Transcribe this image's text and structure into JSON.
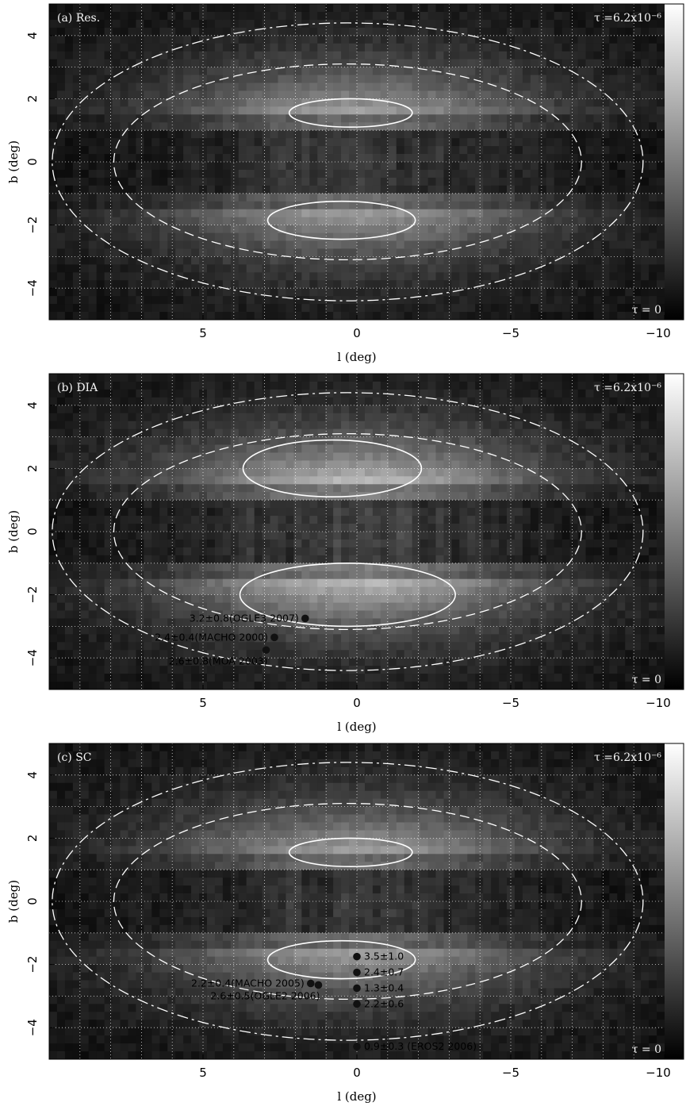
{
  "chart_data": [
    {
      "type": "heatmap",
      "panel": "(a) Res.",
      "xlabel": "l (deg)",
      "ylabel": "b (deg)",
      "xlim": [
        10,
        -10
      ],
      "ylim": [
        -5,
        5
      ],
      "xticks": [
        5,
        0,
        -5,
        -10
      ],
      "xtick_labels": [
        "5",
        "0",
        "−5",
        "−10"
      ],
      "yticks": [
        -4,
        -2,
        0,
        2,
        4
      ],
      "ytick_labels": [
        "−4",
        "−2",
        "0",
        "2",
        "4"
      ],
      "colorbar_max_label": "τ =6.2x10⁻⁶",
      "colorbar_min_label": "τ = 0",
      "grid": true,
      "peak": 0.85,
      "points": []
    },
    {
      "type": "heatmap",
      "panel": "(b) DIA",
      "xlabel": "l (deg)",
      "ylabel": "b (deg)",
      "xlim": [
        10,
        -10
      ],
      "ylim": [
        -5,
        5
      ],
      "xticks": [
        5,
        0,
        -5,
        -10
      ],
      "xtick_labels": [
        "5",
        "0",
        "−5",
        "−10"
      ],
      "yticks": [
        -4,
        -2,
        0,
        2,
        4
      ],
      "ytick_labels": [
        "−4",
        "−2",
        "0",
        "2",
        "4"
      ],
      "colorbar_max_label": "τ =6.2x10⁻⁶",
      "colorbar_min_label": "τ = 0",
      "grid": true,
      "peak": 1.0,
      "points": [
        {
          "l": 1.68,
          "b": -2.75,
          "label": "3.2±0.8(OGLE3 2007)",
          "label_side": "left"
        },
        {
          "l": 2.68,
          "b": -3.35,
          "label": "2.4±0.4(MACHO 2000)",
          "label_side": "left"
        },
        {
          "l": 2.95,
          "b": -3.75,
          "label": "2.6±0.8(MOA 2003)",
          "label_side": "below-left"
        }
      ]
    },
    {
      "type": "heatmap",
      "panel": "(c) SC",
      "xlabel": "l (deg)",
      "ylabel": "b (deg)",
      "xlim": [
        10,
        -10
      ],
      "ylim": [
        -5,
        5
      ],
      "xticks": [
        5,
        0,
        -5,
        -10
      ],
      "xtick_labels": [
        "5",
        "0",
        "−5",
        "−10"
      ],
      "yticks": [
        -4,
        -2,
        0,
        2,
        4
      ],
      "ytick_labels": [
        "−4",
        "−2",
        "0",
        "2",
        "4"
      ],
      "colorbar_max_label": "τ =6.2x10⁻⁶",
      "colorbar_min_label": "τ = 0",
      "grid": true,
      "peak": 0.85,
      "points": [
        {
          "l": 1.5,
          "b": -2.6,
          "label": "2.2±0.4(MACHO 2005)",
          "label_side": "left"
        },
        {
          "l": 1.25,
          "b": -2.65,
          "label": "2.6±0.5(OGLE2 2006)",
          "label_side": "below-left"
        },
        {
          "l": 0.0,
          "b": -1.75,
          "label": "3.5±1.0",
          "label_side": "right"
        },
        {
          "l": 0.0,
          "b": -2.25,
          "label": "2.4±0.7",
          "label_side": "right"
        },
        {
          "l": 0.0,
          "b": -2.75,
          "label": "1.3±0.4",
          "label_side": "right"
        },
        {
          "l": 0.0,
          "b": -3.25,
          "label": "2.2±0.6",
          "label_side": "right"
        },
        {
          "l": 0.0,
          "b": -4.6,
          "label": "0.9±0.3 (EROS2 2006)",
          "label_side": "right"
        }
      ]
    }
  ]
}
